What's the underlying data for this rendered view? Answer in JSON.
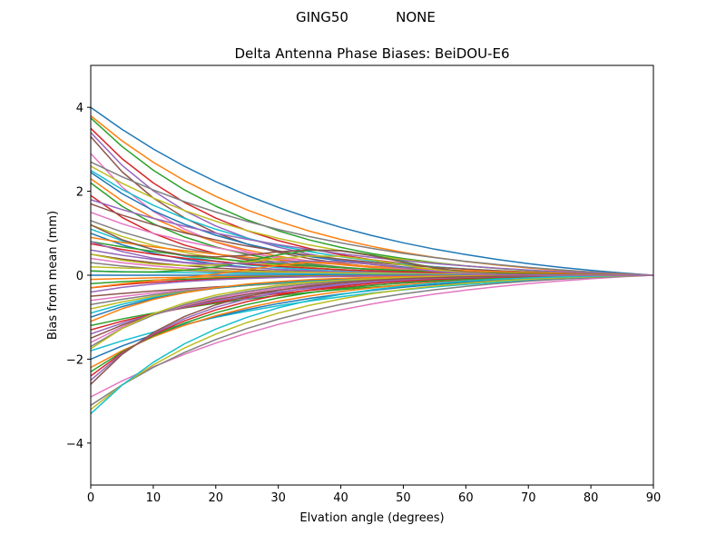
{
  "suptitle": {
    "left": "GING50",
    "right": "NONE"
  },
  "chart_data": {
    "type": "line",
    "title": "Delta Antenna Phase Biases: BeiDOU-E6",
    "xlabel": "Elvation angle (degrees)",
    "ylabel": "Bias from mean (mm)",
    "xlim": [
      0,
      90
    ],
    "ylim": [
      -5,
      5
    ],
    "xticks": [
      0,
      10,
      20,
      30,
      40,
      50,
      60,
      70,
      80,
      90
    ],
    "yticks": [
      -4,
      -2,
      0,
      2,
      4
    ],
    "xtick_labels": [
      "0",
      "10",
      "20",
      "30",
      "40",
      "50",
      "60",
      "70",
      "80",
      "90"
    ],
    "ytick_labels": [
      "−4",
      "−2",
      "0",
      "2",
      "4"
    ],
    "grid": false,
    "legend": "none",
    "x": [
      0,
      5,
      10,
      15,
      20,
      25,
      30,
      35,
      40,
      45,
      50,
      55,
      60,
      65,
      70,
      75,
      80,
      85,
      90
    ],
    "series_count": 60,
    "series_note": "60 per-antenna bias curves; each starts at the listed value at 0 degrees and converges to 0 at 90 degrees",
    "start_values": [
      4.0,
      3.8,
      3.75,
      3.5,
      3.4,
      3.3,
      2.9,
      2.7,
      2.6,
      2.5,
      2.45,
      2.3,
      2.2,
      1.9,
      1.8,
      1.7,
      1.5,
      1.3,
      1.2,
      1.1,
      1.0,
      0.9,
      0.8,
      0.75,
      0.6,
      0.5,
      0.4,
      0.3,
      0.2,
      0.1,
      0.0,
      -0.1,
      -0.2,
      -0.3,
      -0.4,
      -0.5,
      -0.6,
      -0.7,
      -0.8,
      -0.9,
      -1.0,
      -1.1,
      -1.2,
      -1.3,
      -1.4,
      -1.5,
      -1.6,
      -1.7,
      -1.75,
      -1.8,
      -2.0,
      -2.2,
      -2.3,
      -2.4,
      -2.5,
      -2.6,
      -2.9,
      -3.1,
      -3.2,
      -3.3
    ],
    "bump_series": [
      {
        "start": 0.1,
        "peak": 0.62
      },
      {
        "start": 1.2,
        "peak": 0.55
      },
      {
        "start": 0.5,
        "peak": 0.45
      },
      {
        "start": -0.3,
        "peak": 0.35
      },
      {
        "start": 0.8,
        "peak": 0.3
      }
    ],
    "colors": [
      "#1f77b4",
      "#ff7f0e",
      "#2ca02c",
      "#d62728",
      "#9467bd",
      "#8c564b",
      "#e377c2",
      "#7f7f7f",
      "#bcbd22",
      "#17becf"
    ]
  }
}
